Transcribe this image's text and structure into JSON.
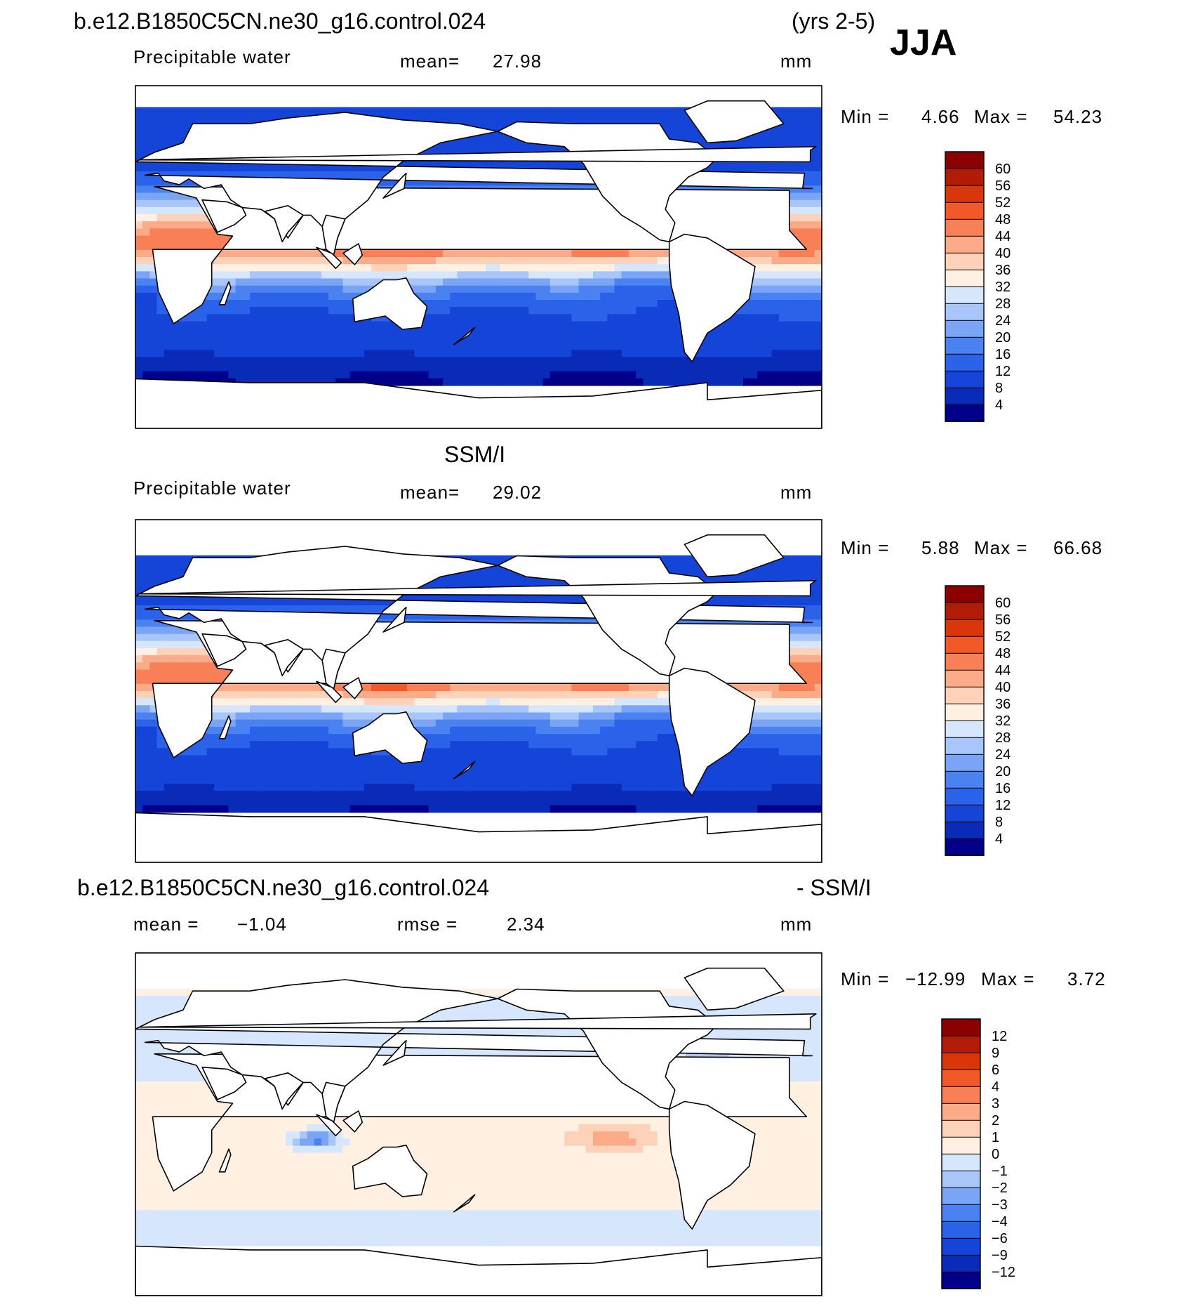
{
  "header": {
    "case_name": "b.e12.B1850C5CN.ne30_g16.control.024",
    "years": "(yrs 2-5)",
    "season": "JJA"
  },
  "colors": {
    "precip_levels": [
      "#00008b",
      "#0a2ab8",
      "#1545d8",
      "#2a62ea",
      "#4a82f2",
      "#7aa4f6",
      "#a8c6fa",
      "#d6e6fc",
      "#fff0e2",
      "#fdd2b8",
      "#fbab88",
      "#f87f56",
      "#f15a28",
      "#d9360c",
      "#b21c06",
      "#8b0000"
    ],
    "diff_levels": [
      "#00008b",
      "#0a2ab8",
      "#1545d8",
      "#2a62ea",
      "#4a82f2",
      "#7aa4f6",
      "#a8c6fa",
      "#d6e6fc",
      "#fff0e2",
      "#fdd2b8",
      "#fbab88",
      "#f87f56",
      "#f15a28",
      "#d9360c",
      "#b21c06",
      "#8b0000"
    ]
  },
  "panels": [
    {
      "id": "model",
      "title_left": "",
      "title_right": "",
      "variable": "Precipitable water",
      "mean_label": "mean=",
      "mean_value": "27.98",
      "rmse_label": "",
      "rmse_value": "",
      "units": "mm",
      "min_label": "Min =",
      "min_value": "4.66",
      "max_label": "Max =",
      "max_value": "54.23",
      "colorbar_labels": [
        "60",
        "56",
        "52",
        "48",
        "44",
        "40",
        "36",
        "32",
        "28",
        "24",
        "20",
        "16",
        "12",
        "8",
        "4"
      ],
      "field": "model"
    },
    {
      "id": "obs",
      "title_left": "",
      "title_center": "SSM/I",
      "title_right": "",
      "variable": "Precipitable water",
      "mean_label": "mean=",
      "mean_value": "29.02",
      "rmse_label": "",
      "rmse_value": "",
      "units": "mm",
      "min_label": "Min =",
      "min_value": "5.88",
      "max_label": "Max =",
      "max_value": "66.68",
      "colorbar_labels": [
        "60",
        "56",
        "52",
        "48",
        "44",
        "40",
        "36",
        "32",
        "28",
        "24",
        "20",
        "16",
        "12",
        "8",
        "4"
      ],
      "field": "obs"
    },
    {
      "id": "diff",
      "title_left": "b.e12.B1850C5CN.ne30_g16.control.024",
      "title_right": "- SSM/I",
      "variable": "",
      "mean_label": "mean =",
      "mean_value": "−1.04",
      "rmse_label": "rmse =",
      "rmse_value": "2.34",
      "units": "mm",
      "min_label": "Min =",
      "min_value": "−12.99",
      "max_label": "Max =",
      "max_value": "3.72",
      "colorbar_labels": [
        "12",
        "9",
        "6",
        "4",
        "3",
        "2",
        "1",
        "0",
        "−1",
        "−2",
        "−3",
        "−4",
        "−6",
        "−9",
        "−12"
      ],
      "field": "diff"
    }
  ],
  "chart_data": [
    {
      "type": "heatmap",
      "title": "b.e12.B1850C5CN.ne30_g16.control.024 (yrs 2-5) JJA",
      "subtitle": "Precipitable water",
      "units": "mm",
      "mean": 27.98,
      "min": 4.66,
      "max": 54.23,
      "contour_levels": [
        4,
        8,
        12,
        16,
        20,
        24,
        28,
        32,
        36,
        40,
        44,
        48,
        52,
        56,
        60
      ],
      "projection": "cylindrical equidistant, centered on 180",
      "lon_range": [
        0,
        360
      ],
      "lat_range": [
        -90,
        90
      ],
      "masked": "land"
    },
    {
      "type": "heatmap",
      "title": "SSM/I",
      "subtitle": "Precipitable water",
      "units": "mm",
      "mean": 29.02,
      "min": 5.88,
      "max": 66.68,
      "contour_levels": [
        4,
        8,
        12,
        16,
        20,
        24,
        28,
        32,
        36,
        40,
        44,
        48,
        52,
        56,
        60
      ],
      "projection": "cylindrical equidistant, centered on 180",
      "lon_range": [
        0,
        360
      ],
      "lat_range": [
        -90,
        90
      ],
      "masked": "land and sea ice"
    },
    {
      "type": "heatmap",
      "title": "b.e12.B1850C5CN.ne30_g16.control.024 - SSM/I",
      "units": "mm",
      "mean": -1.04,
      "rmse": 2.34,
      "min": -12.99,
      "max": 3.72,
      "contour_levels": [
        -12,
        -9,
        -6,
        -4,
        -3,
        -2,
        -1,
        0,
        1,
        2,
        3,
        4,
        6,
        9,
        12
      ],
      "projection": "cylindrical equidistant, centered on 180",
      "lon_range": [
        0,
        360
      ],
      "lat_range": [
        -90,
        90
      ],
      "masked": "land and sea ice"
    }
  ]
}
